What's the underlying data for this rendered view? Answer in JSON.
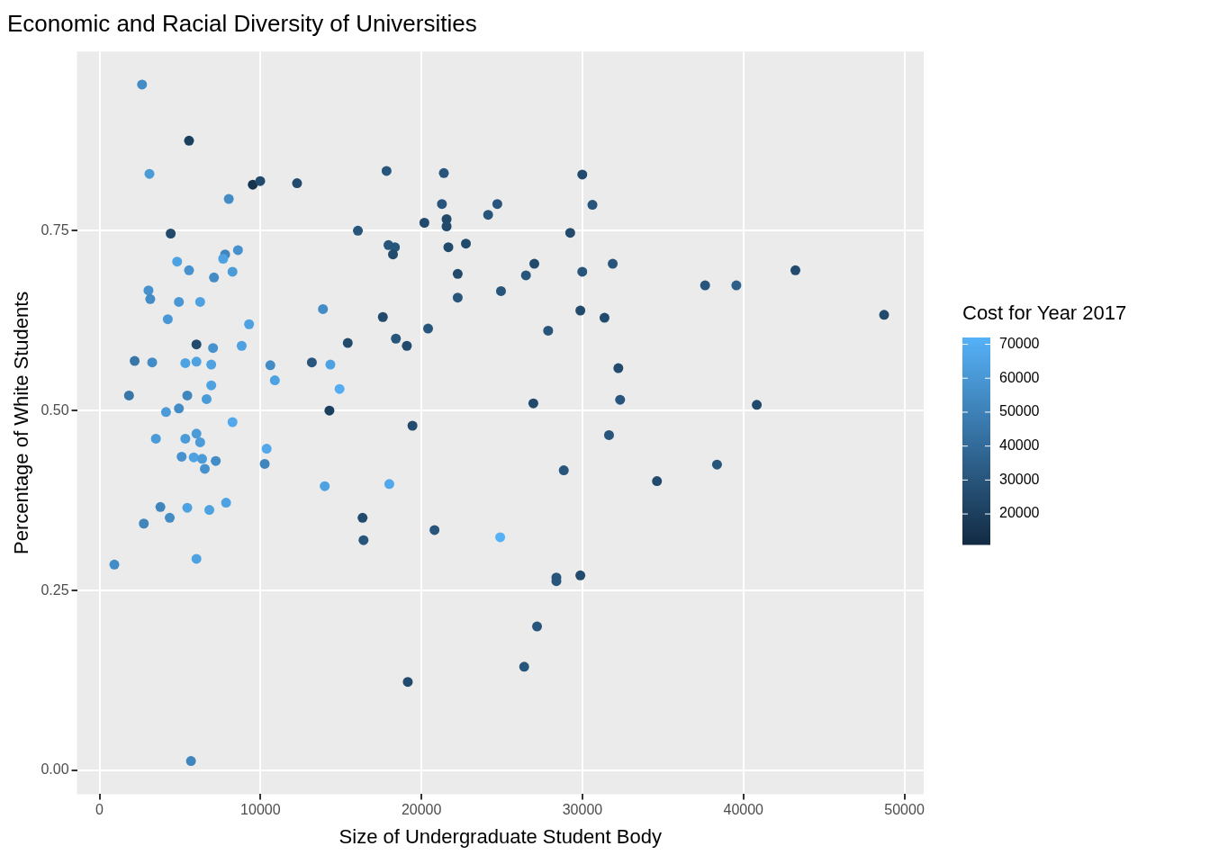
{
  "chart_data": {
    "type": "scatter",
    "title": "Economic and Racial Diversity of Universities",
    "xlabel": "Size of Undergraduate Student Body",
    "ylabel": "Percentage of White Students",
    "clabel": "Cost for Year 2017",
    "x": [
      2640,
      5560,
      3100,
      9520,
      9980,
      12270,
      8030,
      17830,
      21390,
      29990,
      21270,
      24140,
      24710,
      30620,
      20180,
      21560,
      21560,
      16050,
      4420,
      29240,
      17950,
      18350,
      18230,
      21670,
      22760,
      8600,
      7800,
      7680,
      7110,
      4820,
      5560,
      8260,
      3040,
      3150,
      4930,
      6250,
      4240,
      9290,
      13880,
      27010,
      26490,
      22250,
      29990,
      31880,
      22250,
      24940,
      29870,
      31370,
      17600,
      20410,
      27870,
      37620,
      39560,
      43230,
      48740,
      6020,
      15420,
      18410,
      19090,
      7050,
      8830,
      2180,
      3270,
      5330,
      6020,
      6940,
      10610,
      10890,
      13190,
      14340,
      14910,
      32230,
      32340,
      26950,
      40830,
      1830,
      5450,
      6940,
      6650,
      4930,
      4130,
      14280,
      19440,
      8260,
      3500,
      5330,
      6020,
      6250,
      31650,
      5100,
      5850,
      6370,
      7220,
      6540,
      10380,
      10260,
      28840,
      38360,
      34630,
      13990,
      18000,
      3780,
      5450,
      7860,
      6820,
      4360,
      2750,
      16340,
      16400,
      20810,
      24890,
      920,
      6020,
      28380,
      28380,
      29870,
      27180,
      26380,
      19150,
      5680
    ],
    "values": [
      0.953,
      0.875,
      0.829,
      0.814,
      0.819,
      0.816,
      0.794,
      0.833,
      0.83,
      0.828,
      0.787,
      0.772,
      0.787,
      0.786,
      0.761,
      0.766,
      0.756,
      0.75,
      0.746,
      0.747,
      0.73,
      0.727,
      0.717,
      0.727,
      0.732,
      0.723,
      0.717,
      0.711,
      0.685,
      0.707,
      0.695,
      0.693,
      0.667,
      0.655,
      0.651,
      0.651,
      0.627,
      0.62,
      0.641,
      0.704,
      0.688,
      0.69,
      0.693,
      0.704,
      0.657,
      0.666,
      0.639,
      0.629,
      0.63,
      0.614,
      0.611,
      0.674,
      0.674,
      0.695,
      0.633,
      0.592,
      0.594,
      0.6,
      0.59,
      0.587,
      0.59,
      0.569,
      0.567,
      0.566,
      0.568,
      0.564,
      0.563,
      0.542,
      0.567,
      0.564,
      0.53,
      0.559,
      0.515,
      0.51,
      0.508,
      0.521,
      0.521,
      0.535,
      0.516,
      0.503,
      0.498,
      0.5,
      0.479,
      0.484,
      0.461,
      0.461,
      0.468,
      0.456,
      0.466,
      0.436,
      0.435,
      0.433,
      0.43,
      0.419,
      0.447,
      0.426,
      0.417,
      0.425,
      0.402,
      0.395,
      0.398,
      0.366,
      0.365,
      0.372,
      0.362,
      0.351,
      0.343,
      0.351,
      0.32,
      0.334,
      0.324,
      0.286,
      0.294,
      0.268,
      0.263,
      0.271,
      0.2,
      0.144,
      0.123,
      0.013
    ],
    "cvalues": [
      55000,
      20000,
      62000,
      15000,
      25000,
      25000,
      55000,
      30000,
      30000,
      25000,
      30000,
      30000,
      30000,
      30000,
      25000,
      25000,
      25000,
      30000,
      25000,
      25000,
      30000,
      30000,
      25000,
      25000,
      25000,
      58000,
      52000,
      65000,
      55000,
      65000,
      58000,
      62000,
      58000,
      55000,
      60000,
      65000,
      60000,
      65000,
      55000,
      25000,
      30000,
      25000,
      30000,
      30000,
      30000,
      30000,
      25000,
      25000,
      25000,
      30000,
      30000,
      30000,
      35000,
      25000,
      25000,
      25000,
      25000,
      30000,
      25000,
      58000,
      65000,
      45000,
      55000,
      65000,
      65000,
      65000,
      55000,
      65000,
      30000,
      65000,
      70000,
      25000,
      30000,
      25000,
      25000,
      45000,
      52000,
      65000,
      62000,
      55000,
      62000,
      20000,
      25000,
      68000,
      62000,
      62000,
      62000,
      62000,
      30000,
      58000,
      65000,
      62000,
      55000,
      58000,
      68000,
      52000,
      30000,
      30000,
      25000,
      65000,
      68000,
      52000,
      65000,
      65000,
      65000,
      55000,
      52000,
      25000,
      30000,
      30000,
      72000,
      55000,
      65000,
      30000,
      30000,
      25000,
      30000,
      30000,
      25000,
      52000
    ],
    "clim": [
      11000,
      72000
    ],
    "cticks": [
      20000,
      30000,
      40000,
      50000,
      60000,
      70000
    ],
    "xlim": [
      -1400,
      51200
    ],
    "xticks": [
      0,
      10000,
      20000,
      30000,
      40000,
      50000
    ],
    "ylim": [
      -0.033,
      0.999
    ],
    "yticks": [
      {
        "value": 0,
        "label": "0.00"
      },
      {
        "value": 0.25,
        "label": "0.25"
      },
      {
        "value": 0.5,
        "label": "0.50"
      },
      {
        "value": 0.75,
        "label": "0.75"
      }
    ],
    "grid": true,
    "marker": "circle"
  }
}
